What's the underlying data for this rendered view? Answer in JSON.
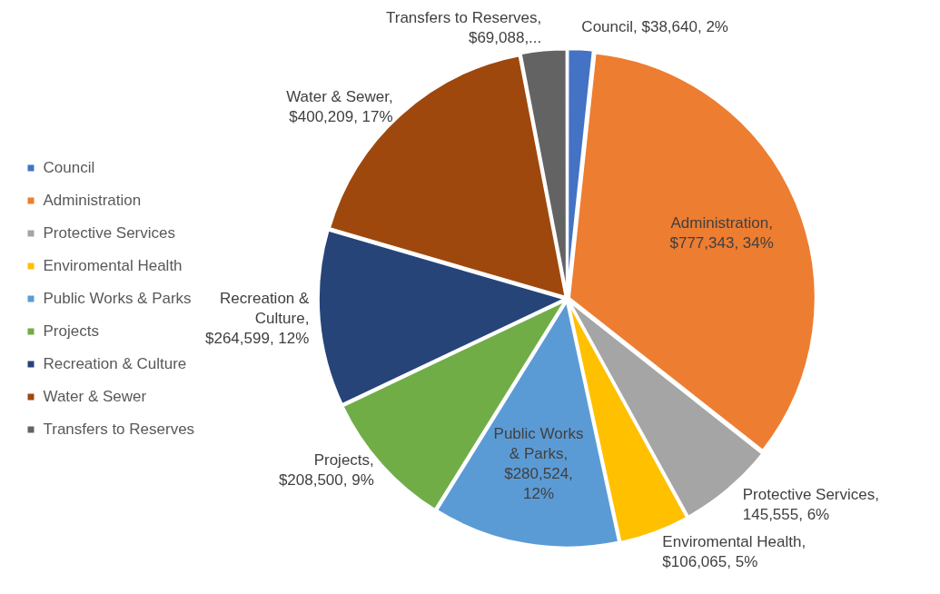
{
  "chart_data": {
    "type": "pie",
    "categories": [
      "Council",
      "Administration",
      "Protective Services",
      "Enviromental Health",
      "Public Works & Parks",
      "Projects",
      "Recreation & Culture",
      "Water & Sewer",
      "Transfers to Reserves"
    ],
    "values": [
      38640,
      777343,
      145555,
      106065,
      280524,
      208500,
      264599,
      400209,
      69088
    ],
    "value_labels": [
      "Council, $38,640, 2%",
      "Administration, $777,343, 34%",
      "Protective Services, 145,555, 6%",
      "Enviromental Health, $106,065, 5%",
      "Public Works & Parks, $280,524, 12%",
      "Projects, $208,500, 9%",
      "Recreation & Culture, $264,599, 12%",
      "Water & Sewer, $400,209, 17%",
      "Transfers to Reserves, $69,088,..."
    ],
    "colors": [
      "#4472c4",
      "#ed7d31",
      "#a5a5a5",
      "#ffc000",
      "#5b9bd5",
      "#70ad47",
      "#264478",
      "#9e480e",
      "#636363"
    ],
    "legend": "left"
  }
}
